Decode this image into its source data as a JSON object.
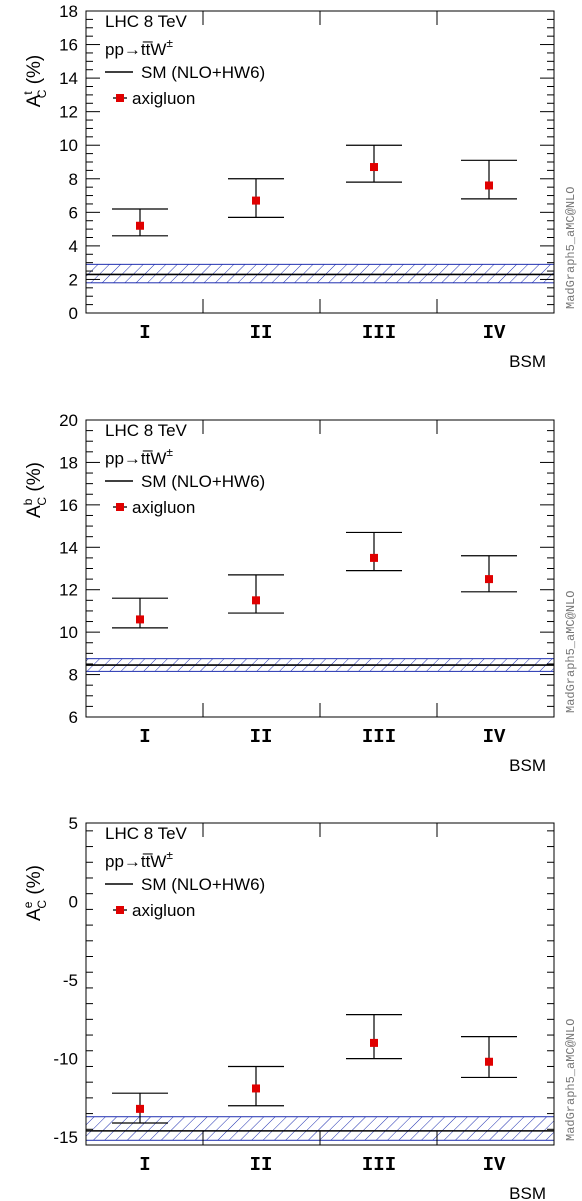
{
  "chart_data": [
    {
      "type": "scatter",
      "panel": "top",
      "ylabel_main": "A",
      "ylabel_sup": "t",
      "ylabel_sub": "C",
      "ylabel_tail": " (%)",
      "xlabel": "BSM",
      "ylim": [
        0,
        18
      ],
      "yticks": [
        0,
        2,
        4,
        6,
        8,
        10,
        12,
        14,
        16,
        18
      ],
      "yminor_step": 0.5,
      "categories": [
        "I",
        "II",
        "III",
        "IV"
      ],
      "legend": {
        "title": "LHC 8 TeV",
        "process_main": "pp→tt̅W",
        "process_sup": "±",
        "sm": "SM (NLO+HW6)",
        "bsm": "axigluon"
      },
      "sm_band": {
        "central": 2.3,
        "low": 1.8,
        "high": 2.9
      },
      "series": [
        {
          "name": "axigluon",
          "values": [
            5.2,
            6.7,
            8.7,
            7.6
          ],
          "err_low": [
            4.6,
            5.7,
            7.8,
            6.8
          ],
          "err_high": [
            6.2,
            8.0,
            10.0,
            9.1
          ]
        }
      ],
      "watermark": "MadGraph5_aMC@NLO",
      "grid": false
    },
    {
      "type": "scatter",
      "panel": "middle",
      "ylabel_main": "A",
      "ylabel_sup": "b",
      "ylabel_sub": "C",
      "ylabel_tail": " (%)",
      "xlabel": "BSM",
      "ylim": [
        6,
        20
      ],
      "yticks": [
        6,
        8,
        10,
        12,
        14,
        16,
        18,
        20
      ],
      "yminor_step": 0.5,
      "categories": [
        "I",
        "II",
        "III",
        "IV"
      ],
      "legend": {
        "title": "LHC 8 TeV",
        "process_main": "pp→tt̅W",
        "process_sup": "±",
        "sm": "SM (NLO+HW6)",
        "bsm": "axigluon"
      },
      "sm_band": {
        "central": 8.45,
        "low": 8.15,
        "high": 8.75
      },
      "series": [
        {
          "name": "axigluon",
          "values": [
            10.6,
            11.5,
            13.5,
            12.5
          ],
          "err_low": [
            10.2,
            10.9,
            12.9,
            11.9
          ],
          "err_high": [
            11.6,
            12.7,
            14.7,
            13.6
          ]
        }
      ],
      "watermark": "MadGraph5_aMC@NLO",
      "grid": false
    },
    {
      "type": "scatter",
      "panel": "bottom",
      "ylabel_main": "A",
      "ylabel_sup": "e",
      "ylabel_sub": "C",
      "ylabel_tail": " (%)",
      "xlabel": "BSM",
      "ylim": [
        -15.5,
        5
      ],
      "yticks": [
        -15,
        -10,
        -5,
        0,
        5
      ],
      "ytick_labels": [
        "-15",
        "-10",
        "-5",
        "0",
        "5"
      ],
      "yminor_step": 1,
      "categories": [
        "I",
        "II",
        "III",
        "IV"
      ],
      "legend": {
        "title": "LHC 8 TeV",
        "process_main": "pp→tt̅W",
        "process_sup": "±",
        "sm": "SM (NLO+HW6)",
        "bsm": "axigluon"
      },
      "sm_band": {
        "central": -14.6,
        "low": -15.2,
        "high": -13.7
      },
      "series": [
        {
          "name": "axigluon",
          "values": [
            -13.2,
            -11.9,
            -9.0,
            -10.2
          ],
          "err_low": [
            -14.1,
            -13.0,
            -10.0,
            -11.2
          ],
          "err_high": [
            -12.2,
            -10.5,
            -7.2,
            -8.6
          ]
        }
      ],
      "watermark": "MadGraph5_aMC@NLO",
      "grid": false
    }
  ],
  "colors": {
    "marker": "#e00000",
    "band": "#1f2fb0",
    "axis": "#000000"
  }
}
